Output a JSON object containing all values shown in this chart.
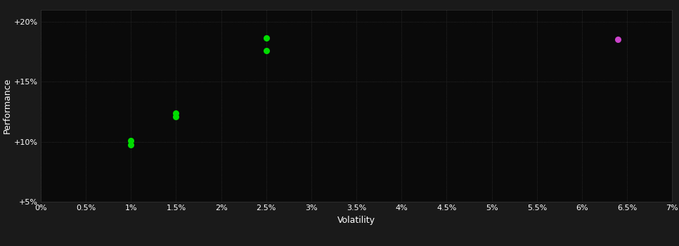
{
  "background_color": "#1a1a1a",
  "plot_bg_color": "#0a0a0a",
  "grid_color": "#333333",
  "text_color": "#ffffff",
  "green_points": [
    [
      0.01,
      0.101
    ],
    [
      0.01,
      0.0975
    ],
    [
      0.015,
      0.124
    ],
    [
      0.015,
      0.121
    ],
    [
      0.025,
      0.1865
    ],
    [
      0.025,
      0.176
    ]
  ],
  "purple_points": [
    [
      0.064,
      0.1855
    ]
  ],
  "green_color": "#00dd00",
  "purple_color": "#cc44cc",
  "xlabel": "Volatility",
  "ylabel": "Performance",
  "xlim": [
    0.0,
    0.07
  ],
  "ylim": [
    0.05,
    0.21
  ],
  "xtick_values": [
    0.0,
    0.005,
    0.01,
    0.015,
    0.02,
    0.025,
    0.03,
    0.035,
    0.04,
    0.045,
    0.05,
    0.055,
    0.06,
    0.065,
    0.07
  ],
  "ytick_values": [
    0.05,
    0.1,
    0.15,
    0.2
  ],
  "ytick_labels": [
    "+5%",
    "+10%",
    "+15%",
    "+20%"
  ],
  "xtick_labels": [
    "0%",
    "0.5%",
    "1%",
    "1.5%",
    "2%",
    "2.5%",
    "3%",
    "3.5%",
    "4%",
    "4.5%",
    "5%",
    "5.5%",
    "6%",
    "6.5%",
    "7%"
  ],
  "marker_size": 30,
  "font_size": 8
}
